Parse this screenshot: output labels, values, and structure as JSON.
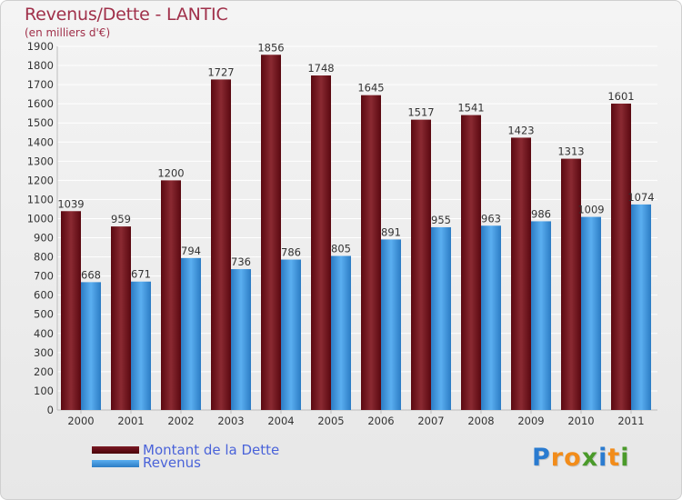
{
  "title": "Revenus/Dette - LANTIC",
  "subtitle": "(en milliers d'€)",
  "colors": {
    "debt": "#7a1a24",
    "debt_dark": "#5a0a12",
    "revenue": "#4aa0e4",
    "revenue_dark": "#2f7fc6",
    "title": "#a0304a",
    "legend_text": "#4a63d9"
  },
  "logo": {
    "text": "Proxiti",
    "letters": [
      "P",
      "r",
      "o",
      "x",
      "i",
      "t",
      "i"
    ],
    "letter_colors": [
      "#2a7bd0",
      "#f28c1a",
      "#f28c1a",
      "#4a9a2a",
      "#2a7bd0",
      "#f28c1a",
      "#4a9a2a"
    ]
  },
  "chart_data": {
    "type": "bar",
    "title": "Revenus/Dette - LANTIC",
    "subtitle": "(en milliers d'€)",
    "categories": [
      "2000",
      "2001",
      "2002",
      "2003",
      "2004",
      "2005",
      "2006",
      "2007",
      "2008",
      "2009",
      "2010",
      "2011"
    ],
    "series": [
      {
        "name": "Montant de la Dette",
        "values": [
          1039,
          959,
          1200,
          1727,
          1856,
          1748,
          1645,
          1517,
          1541,
          1423,
          1313,
          1601
        ]
      },
      {
        "name": "Revenus",
        "values": [
          668,
          671,
          794,
          736,
          786,
          805,
          891,
          955,
          963,
          986,
          1009,
          1074
        ]
      }
    ],
    "ylim": [
      0,
      1900
    ],
    "yticks": [
      0,
      100,
      200,
      300,
      400,
      500,
      600,
      700,
      800,
      900,
      1000,
      1100,
      1200,
      1300,
      1400,
      1500,
      1600,
      1700,
      1800,
      1900
    ],
    "grid": true,
    "legend_position": "bottom-left"
  }
}
